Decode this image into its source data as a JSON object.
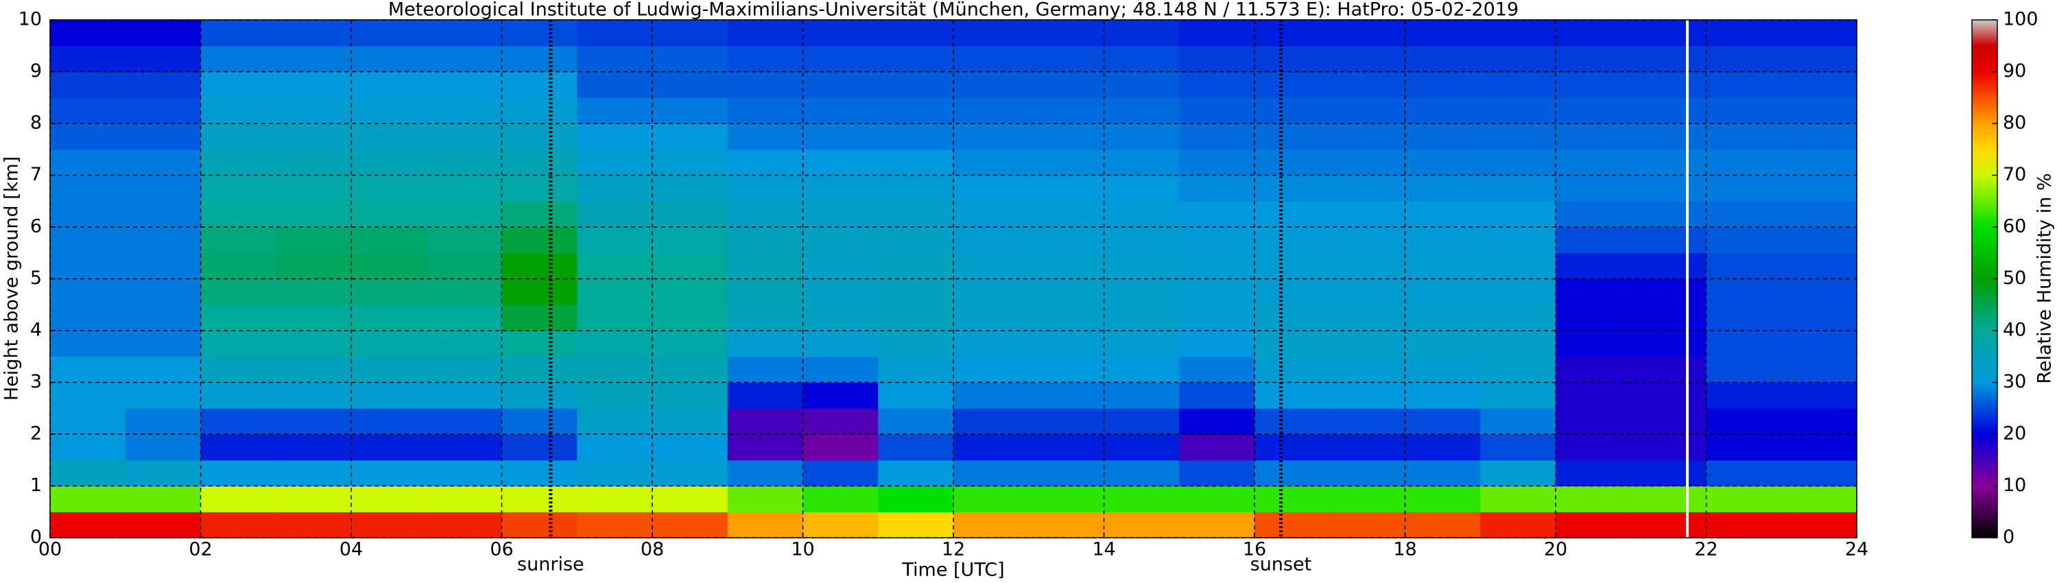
{
  "chart_data": {
    "type": "heatmap",
    "title": "Meteorological Institute of Ludwig-Maximilians-Universität (München, Germany; 48.148 N / 11.573 E):    HatPro: 05-02-2019",
    "xlabel": "Time [UTC]",
    "ylabel": "Height above ground [km]",
    "colorbar_label": "Relative Humidity in %",
    "x": [
      0,
      1,
      2,
      3,
      4,
      5,
      6,
      7,
      8,
      9,
      10,
      11,
      12,
      13,
      14,
      15,
      16,
      17,
      18,
      19,
      20,
      21,
      22,
      23,
      24
    ],
    "y": [
      0,
      0.5,
      1,
      1.5,
      2,
      2.5,
      3,
      3.5,
      4,
      4.5,
      5,
      5.5,
      6,
      6.5,
      7,
      7.5,
      8,
      8.5,
      9,
      9.5,
      10
    ],
    "z": [
      [
        90,
        65,
        35,
        30,
        30,
        30,
        30,
        28,
        28,
        28,
        28,
        28,
        28,
        28,
        28,
        26,
        25,
        24,
        22,
        20
      ],
      [
        90,
        65,
        33,
        28,
        28,
        30,
        30,
        28,
        28,
        28,
        28,
        28,
        28,
        28,
        28,
        26,
        25,
        24,
        22,
        20
      ],
      [
        88,
        70,
        30,
        22,
        25,
        32,
        35,
        38,
        40,
        42,
        43,
        42,
        40,
        38,
        36,
        34,
        32,
        30,
        28,
        25
      ],
      [
        88,
        70,
        30,
        22,
        25,
        32,
        35,
        38,
        40,
        42,
        44,
        43,
        40,
        38,
        36,
        34,
        32,
        30,
        28,
        25
      ],
      [
        88,
        70,
        30,
        22,
        25,
        32,
        35,
        38,
        40,
        42,
        44,
        43,
        40,
        38,
        36,
        34,
        32,
        30,
        28,
        25
      ],
      [
        88,
        70,
        30,
        22,
        25,
        32,
        35,
        38,
        40,
        42,
        43,
        42,
        40,
        38,
        36,
        34,
        32,
        30,
        28,
        25
      ],
      [
        86,
        70,
        30,
        24,
        27,
        33,
        36,
        40,
        46,
        50,
        50,
        46,
        42,
        38,
        36,
        34,
        32,
        30,
        28,
        25
      ],
      [
        85,
        70,
        32,
        30,
        33,
        35,
        36,
        38,
        40,
        40,
        40,
        38,
        36,
        34,
        32,
        30,
        28,
        26,
        26,
        24
      ],
      [
        85,
        70,
        32,
        30,
        33,
        35,
        36,
        38,
        40,
        40,
        40,
        38,
        36,
        34,
        32,
        30,
        28,
        26,
        26,
        24
      ],
      [
        80,
        65,
        28,
        15,
        15,
        22,
        28,
        32,
        35,
        36,
        36,
        35,
        34,
        32,
        30,
        28,
        27,
        26,
        25,
        23
      ],
      [
        78,
        62,
        25,
        12,
        14,
        20,
        28,
        32,
        34,
        34,
        34,
        34,
        33,
        32,
        30,
        28,
        27,
        26,
        25,
        23
      ],
      [
        75,
        60,
        30,
        25,
        28,
        30,
        32,
        34,
        35,
        35,
        35,
        34,
        33,
        32,
        30,
        28,
        27,
        26,
        25,
        23
      ],
      [
        80,
        62,
        28,
        22,
        24,
        28,
        30,
        32,
        33,
        33,
        33,
        32,
        31,
        30,
        29,
        28,
        27,
        26,
        25,
        23
      ],
      [
        80,
        62,
        28,
        22,
        24,
        28,
        30,
        32,
        33,
        33,
        33,
        32,
        31,
        30,
        29,
        28,
        27,
        26,
        25,
        23
      ],
      [
        80,
        62,
        28,
        22,
        24,
        28,
        30,
        32,
        33,
        33,
        33,
        32,
        31,
        30,
        29,
        28,
        27,
        26,
        25,
        23
      ],
      [
        80,
        62,
        25,
        15,
        20,
        25,
        28,
        30,
        32,
        32,
        32,
        31,
        30,
        29,
        28,
        27,
        26,
        25,
        24,
        22
      ],
      [
        85,
        62,
        28,
        22,
        25,
        30,
        32,
        33,
        33,
        32,
        32,
        31,
        30,
        29,
        28,
        27,
        26,
        25,
        24,
        22
      ],
      [
        85,
        62,
        28,
        22,
        25,
        30,
        32,
        33,
        33,
        32,
        32,
        31,
        30,
        29,
        28,
        27,
        26,
        25,
        24,
        22
      ],
      [
        85,
        62,
        28,
        22,
        25,
        30,
        32,
        33,
        33,
        32,
        32,
        31,
        30,
        29,
        28,
        27,
        26,
        25,
        24,
        22
      ],
      [
        88,
        65,
        32,
        25,
        28,
        32,
        33,
        33,
        33,
        32,
        32,
        31,
        30,
        29,
        28,
        27,
        26,
        25,
        24,
        22
      ],
      [
        90,
        65,
        22,
        18,
        18,
        18,
        18,
        20,
        20,
        20,
        22,
        25,
        27,
        28,
        28,
        27,
        26,
        25,
        24,
        22
      ],
      [
        90,
        65,
        22,
        18,
        18,
        18,
        18,
        20,
        20,
        20,
        22,
        25,
        27,
        28,
        28,
        27,
        26,
        25,
        24,
        22
      ],
      [
        90,
        65,
        25,
        20,
        20,
        22,
        25,
        25,
        25,
        25,
        25,
        26,
        27,
        28,
        28,
        27,
        26,
        25,
        24,
        22
      ],
      [
        90,
        65,
        25,
        20,
        20,
        22,
        25,
        25,
        25,
        25,
        25,
        26,
        27,
        28,
        28,
        27,
        26,
        25,
        24,
        22
      ]
    ],
    "xlim": [
      0,
      24
    ],
    "ylim": [
      0,
      10
    ],
    "clim": [
      0,
      100
    ],
    "xticks": [
      {
        "value": 0,
        "label": "00"
      },
      {
        "value": 2,
        "label": "02"
      },
      {
        "value": 4,
        "label": "04"
      },
      {
        "value": 6,
        "label": "06"
      },
      {
        "value": 8,
        "label": "08"
      },
      {
        "value": 10,
        "label": "10"
      },
      {
        "value": 12,
        "label": "12"
      },
      {
        "value": 14,
        "label": "14"
      },
      {
        "value": 16,
        "label": "16"
      },
      {
        "value": 18,
        "label": "18"
      },
      {
        "value": 20,
        "label": "20"
      },
      {
        "value": 22,
        "label": "22"
      },
      {
        "value": 24,
        "label": "24"
      }
    ],
    "yticks": [
      0,
      1,
      2,
      3,
      4,
      5,
      6,
      7,
      8,
      9,
      10
    ],
    "cticks": [
      0,
      10,
      20,
      30,
      40,
      50,
      60,
      70,
      80,
      90,
      100
    ],
    "grid": true,
    "markers": [
      {
        "x": 6.65,
        "label": "sunrise"
      },
      {
        "x": 16.35,
        "label": "sunset"
      }
    ],
    "gap_line_x": 21.75,
    "colormap": [
      [
        0,
        "#000000"
      ],
      [
        10,
        "#880099"
      ],
      [
        20,
        "#0000dd"
      ],
      [
        30,
        "#0099dd"
      ],
      [
        40,
        "#00aa99"
      ],
      [
        50,
        "#00a000"
      ],
      [
        60,
        "#00e000"
      ],
      [
        70,
        "#ccf800"
      ],
      [
        75,
        "#ffd800"
      ],
      [
        80,
        "#ffa000"
      ],
      [
        90,
        "#ee0000"
      ],
      [
        95,
        "#cc0000"
      ],
      [
        100,
        "#cccccc"
      ]
    ]
  }
}
